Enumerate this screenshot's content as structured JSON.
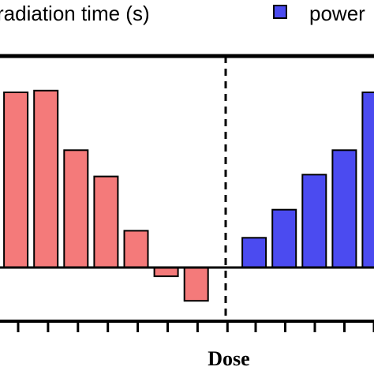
{
  "chart_data": {
    "type": "bar",
    "xlabel": "Dose",
    "legend": {
      "placement": "top",
      "entries": [
        {
          "label": "radiation time (s)",
          "color": "#f47a7a"
        },
        {
          "label": "power",
          "color": "#4b4bf0"
        }
      ]
    },
    "series": [
      {
        "name": "radiation time (s)",
        "color": "#f47a7a",
        "values": [
          1.0,
          1.01,
          0.67,
          0.52,
          0.21,
          -0.05,
          -0.19
        ]
      },
      {
        "name": "power",
        "color": "#4b4bf0",
        "values": [
          0.17,
          0.33,
          0.53,
          0.67,
          1.0
        ]
      }
    ],
    "ylim": [
      -0.3,
      1.2
    ],
    "grid": false,
    "divider": "dashed vertical line between the two groups"
  }
}
